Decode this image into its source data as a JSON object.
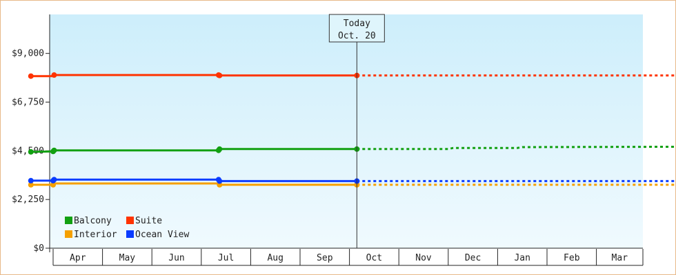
{
  "chart_data": {
    "type": "line",
    "x_categories": [
      "Apr",
      "May",
      "Jun",
      "Jul",
      "Aug",
      "Sep",
      "Oct",
      "Nov",
      "Dec",
      "Jan",
      "Feb",
      "Mar"
    ],
    "y_ticks": [
      "$0",
      "$2,250",
      "$4,500",
      "$6,750",
      "$9,000"
    ],
    "ylim": [
      0,
      10800
    ],
    "grid": false,
    "legend_position": "bottom-left",
    "today_marker": {
      "line1": "Today",
      "line2": "Oct. 20",
      "month_position": 6.15
    },
    "series": [
      {
        "name": "Balcony",
        "color": "#12a012",
        "actual": [
          [
            -0.45,
            4450
          ],
          [
            0.0,
            4470
          ],
          [
            0.02,
            4520
          ],
          [
            3.35,
            4520
          ],
          [
            3.37,
            4580
          ],
          [
            6.15,
            4580
          ]
        ],
        "points": [
          [
            -0.45,
            4450
          ],
          [
            0.0,
            4470
          ],
          [
            0.02,
            4520
          ],
          [
            3.35,
            4520
          ],
          [
            3.37,
            4580
          ],
          [
            6.15,
            4580
          ]
        ],
        "forecast": [
          [
            6.15,
            4580
          ],
          [
            8.0,
            4580
          ],
          [
            8.1,
            4630
          ],
          [
            9.4,
            4630
          ],
          [
            9.5,
            4670
          ],
          [
            12.95,
            4690
          ]
        ]
      },
      {
        "name": "Suite",
        "color": "#ff3300",
        "actual": [
          [
            -0.45,
            7950
          ],
          [
            0.0,
            7950
          ],
          [
            0.02,
            8000
          ],
          [
            3.35,
            8000
          ],
          [
            3.37,
            7980
          ],
          [
            6.15,
            7980
          ]
        ],
        "points": [
          [
            -0.45,
            7950
          ],
          [
            0.02,
            8000
          ],
          [
            3.35,
            8000
          ],
          [
            3.37,
            7980
          ],
          [
            6.15,
            7980
          ]
        ],
        "forecast": [
          [
            6.15,
            7980
          ],
          [
            12.95,
            7980
          ]
        ]
      },
      {
        "name": "Interior",
        "color": "#f5a000",
        "actual": [
          [
            -0.45,
            2930
          ],
          [
            0.0,
            2930
          ],
          [
            0.02,
            2990
          ],
          [
            3.35,
            2990
          ],
          [
            3.37,
            2930
          ],
          [
            6.15,
            2930
          ]
        ],
        "points": [
          [
            -0.45,
            2930
          ],
          [
            0.0,
            2930
          ],
          [
            3.37,
            2930
          ],
          [
            6.15,
            2930
          ]
        ],
        "forecast": [
          [
            6.15,
            2930
          ],
          [
            12.95,
            2930
          ]
        ]
      },
      {
        "name": "Ocean View",
        "color": "#0a3cff",
        "actual": [
          [
            -0.45,
            3120
          ],
          [
            0.0,
            3120
          ],
          [
            0.02,
            3170
          ],
          [
            3.35,
            3170
          ],
          [
            3.37,
            3100
          ],
          [
            6.15,
            3100
          ]
        ],
        "points": [
          [
            -0.45,
            3120
          ],
          [
            0.0,
            3120
          ],
          [
            0.02,
            3170
          ],
          [
            3.35,
            3170
          ],
          [
            3.37,
            3100
          ],
          [
            6.15,
            3100
          ]
        ],
        "forecast": [
          [
            6.15,
            3100
          ],
          [
            12.95,
            3100
          ]
        ]
      }
    ]
  }
}
